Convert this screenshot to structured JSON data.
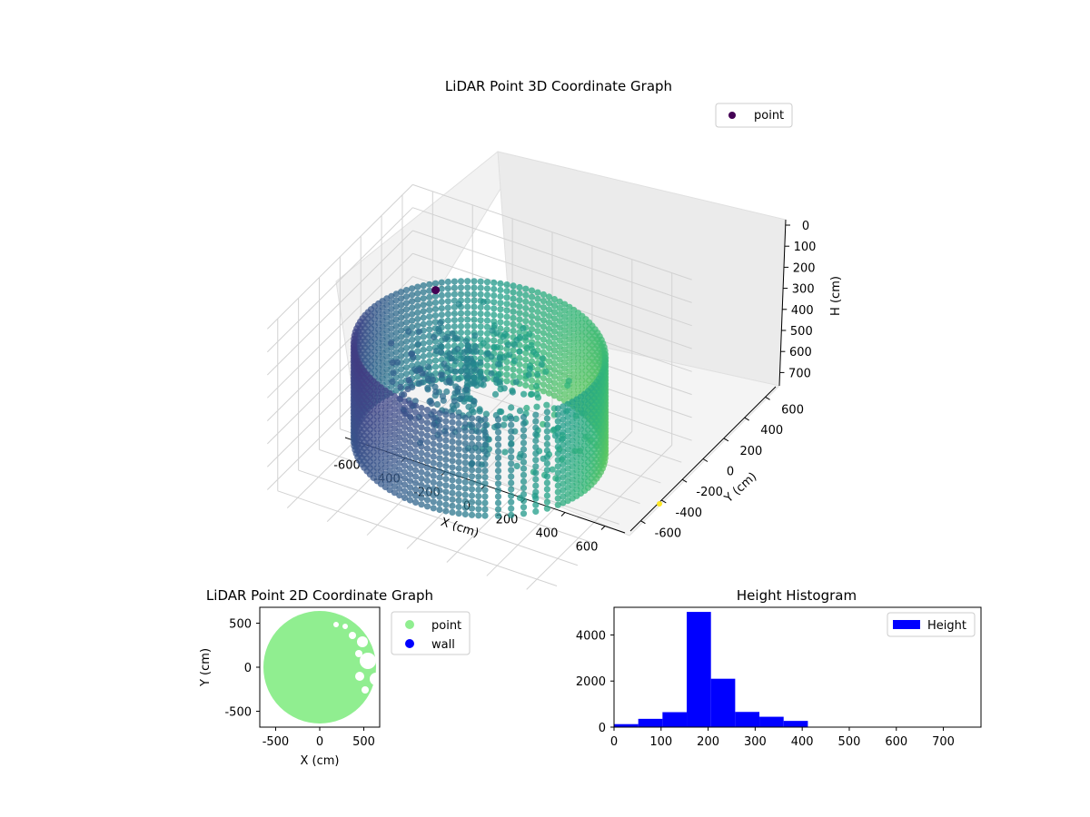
{
  "chart_data": [
    {
      "type": "scatter3d",
      "title": "LiDAR Point 3D Coordinate Graph",
      "xlabel": "X (cm)",
      "ylabel": "Y (cm)",
      "zlabel": "H (cm)",
      "xlim": [
        -700,
        700
      ],
      "ylim": [
        -700,
        700
      ],
      "zlim": [
        0,
        750
      ],
      "z_inverted": true,
      "x_ticks": [
        -600,
        -400,
        -200,
        0,
        200,
        400,
        600
      ],
      "y_ticks": [
        -600,
        -400,
        -200,
        0,
        200,
        400,
        600
      ],
      "z_ticks": [
        0,
        100,
        200,
        300,
        400,
        500,
        600,
        700
      ],
      "grid": true,
      "legend": {
        "position": "upper-right",
        "entries": [
          {
            "label": "point",
            "color": "#440154"
          }
        ]
      },
      "colormap": "viridis",
      "description_of_points": {
        "wall_ring_radius_cm": 560,
        "wall_height_range_cm": [
          200,
          620
        ],
        "interior_cluster_center_cm": [
          -80,
          30
        ],
        "isolated_point_cm": [
          -330,
          210,
          130
        ],
        "outlier_point_cm": [
          -120,
          -640,
          700
        ]
      }
    },
    {
      "type": "scatter",
      "title": "LiDAR Point 2D Coordinate Graph",
      "xlabel": "X (cm)",
      "ylabel": "Y (cm)",
      "xlim": [
        -680,
        680
      ],
      "ylim": [
        -680,
        680
      ],
      "x_ticks": [
        -500,
        0,
        500
      ],
      "y_ticks": [
        -500,
        0,
        500
      ],
      "legend": {
        "position": "outside-right",
        "entries": [
          {
            "label": "point",
            "color": "#90ee90"
          },
          {
            "label": "wall",
            "color": "#0000ff"
          }
        ]
      },
      "disc_radius_cm": 640
    },
    {
      "type": "histogram",
      "title": "Height Histogram",
      "xlim": [
        0,
        780
      ],
      "ylim": [
        0,
        5200
      ],
      "x_ticks": [
        0,
        100,
        200,
        300,
        400,
        500,
        600,
        700
      ],
      "y_ticks": [
        0,
        2000,
        4000
      ],
      "bin_width": 51.5,
      "bins_start": [
        0,
        51.5,
        103,
        154.5,
        206,
        257.5,
        309,
        360.5,
        412,
        463.5,
        515,
        566.5,
        618,
        669.5,
        721
      ],
      "counts": [
        130,
        360,
        650,
        5000,
        2100,
        660,
        450,
        270,
        10,
        10,
        8,
        5,
        5,
        4,
        10
      ],
      "color": "#0000ff",
      "legend": {
        "position": "upper-right",
        "entries": [
          {
            "label": "Height",
            "color": "#0000ff"
          }
        ]
      }
    }
  ]
}
